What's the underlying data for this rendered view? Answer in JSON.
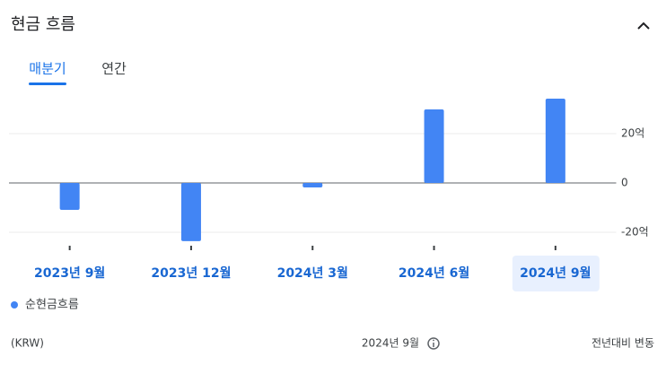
{
  "header": {
    "title": "현금 흐름"
  },
  "tabs": [
    "매분기",
    "연간"
  ],
  "chart_data": {
    "type": "bar",
    "categories": [
      "2023년 9월",
      "2023년 12월",
      "2024년 3월",
      "2024년 6월",
      "2024년 9월"
    ],
    "series": [
      {
        "name": "순현금흐름",
        "color": "#4285f4",
        "values": [
          -10.9,
          -23.6,
          -1.8,
          29.8,
          34.2
        ]
      }
    ],
    "ylim": [
      -25,
      40
    ],
    "yticks": [
      {
        "value": 20,
        "label": "20억"
      },
      0,
      {
        "value": -20,
        "label": "-20억"
      }
    ],
    "grid": true,
    "highlight_index": 4
  },
  "footer": {
    "currency": "(KRW)",
    "period": "2024년 9월",
    "change": "전년대비 변동"
  }
}
